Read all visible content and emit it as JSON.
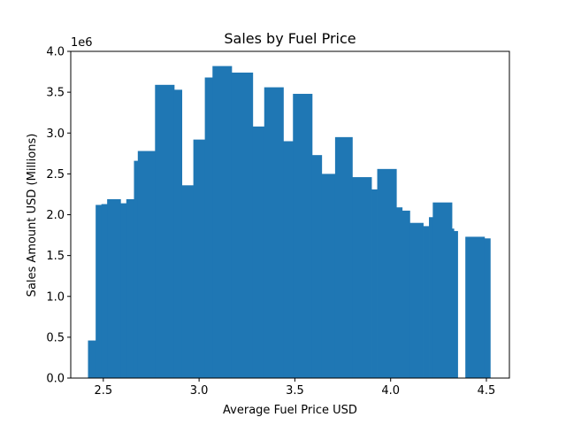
{
  "chart_data": {
    "type": "bar",
    "title": "Sales by Fuel Price",
    "xlabel": "Average Fuel Price USD",
    "ylabel": "Sales Amount USD (Millions)",
    "y_offset_label": "1e6",
    "xlim": [
      2.33,
      4.62
    ],
    "ylim": [
      0,
      4.0
    ],
    "x_ticks": [
      "2.5",
      "3.0",
      "3.5",
      "4.0",
      "4.5"
    ],
    "y_ticks": [
      "0.0",
      "0.5",
      "1.0",
      "1.5",
      "2.0",
      "2.5",
      "3.0",
      "3.5",
      "4.0"
    ],
    "grid": false,
    "bars": [
      {
        "x0": 2.42,
        "x1": 2.46,
        "value": 0.46
      },
      {
        "x0": 2.46,
        "x1": 2.49,
        "value": 2.12
      },
      {
        "x0": 2.49,
        "x1": 2.52,
        "value": 2.13
      },
      {
        "x0": 2.52,
        "x1": 2.59,
        "value": 2.19
      },
      {
        "x0": 2.59,
        "x1": 2.62,
        "value": 2.14
      },
      {
        "x0": 2.62,
        "x1": 2.66,
        "value": 2.19
      },
      {
        "x0": 2.66,
        "x1": 2.68,
        "value": 2.66
      },
      {
        "x0": 2.68,
        "x1": 2.77,
        "value": 2.78
      },
      {
        "x0": 2.77,
        "x1": 2.87,
        "value": 3.59
      },
      {
        "x0": 2.87,
        "x1": 2.91,
        "value": 3.53
      },
      {
        "x0": 2.91,
        "x1": 2.97,
        "value": 2.36
      },
      {
        "x0": 2.97,
        "x1": 3.03,
        "value": 2.92
      },
      {
        "x0": 3.03,
        "x1": 3.07,
        "value": 3.68
      },
      {
        "x0": 3.07,
        "x1": 3.17,
        "value": 3.82
      },
      {
        "x0": 3.17,
        "x1": 3.28,
        "value": 3.74
      },
      {
        "x0": 3.28,
        "x1": 3.34,
        "value": 3.08
      },
      {
        "x0": 3.34,
        "x1": 3.44,
        "value": 3.56
      },
      {
        "x0": 3.44,
        "x1": 3.49,
        "value": 2.9
      },
      {
        "x0": 3.49,
        "x1": 3.59,
        "value": 3.48
      },
      {
        "x0": 3.59,
        "x1": 3.64,
        "value": 2.73
      },
      {
        "x0": 3.64,
        "x1": 3.71,
        "value": 2.5
      },
      {
        "x0": 3.71,
        "x1": 3.8,
        "value": 2.95
      },
      {
        "x0": 3.8,
        "x1": 3.9,
        "value": 2.46
      },
      {
        "x0": 3.9,
        "x1": 3.93,
        "value": 2.31
      },
      {
        "x0": 3.93,
        "x1": 4.03,
        "value": 2.56
      },
      {
        "x0": 4.03,
        "x1": 4.06,
        "value": 2.09
      },
      {
        "x0": 4.06,
        "x1": 4.1,
        "value": 2.05
      },
      {
        "x0": 4.1,
        "x1": 4.17,
        "value": 1.9
      },
      {
        "x0": 4.17,
        "x1": 4.2,
        "value": 1.86
      },
      {
        "x0": 4.2,
        "x1": 4.22,
        "value": 1.97
      },
      {
        "x0": 4.22,
        "x1": 4.32,
        "value": 2.15
      },
      {
        "x0": 4.32,
        "x1": 4.33,
        "value": 1.83
      },
      {
        "x0": 4.33,
        "x1": 4.35,
        "value": 1.8
      },
      {
        "x0": 4.39,
        "x1": 4.49,
        "value": 1.73
      },
      {
        "x0": 4.49,
        "x1": 4.52,
        "value": 1.71
      }
    ],
    "bar_color": "#1f77b4"
  }
}
